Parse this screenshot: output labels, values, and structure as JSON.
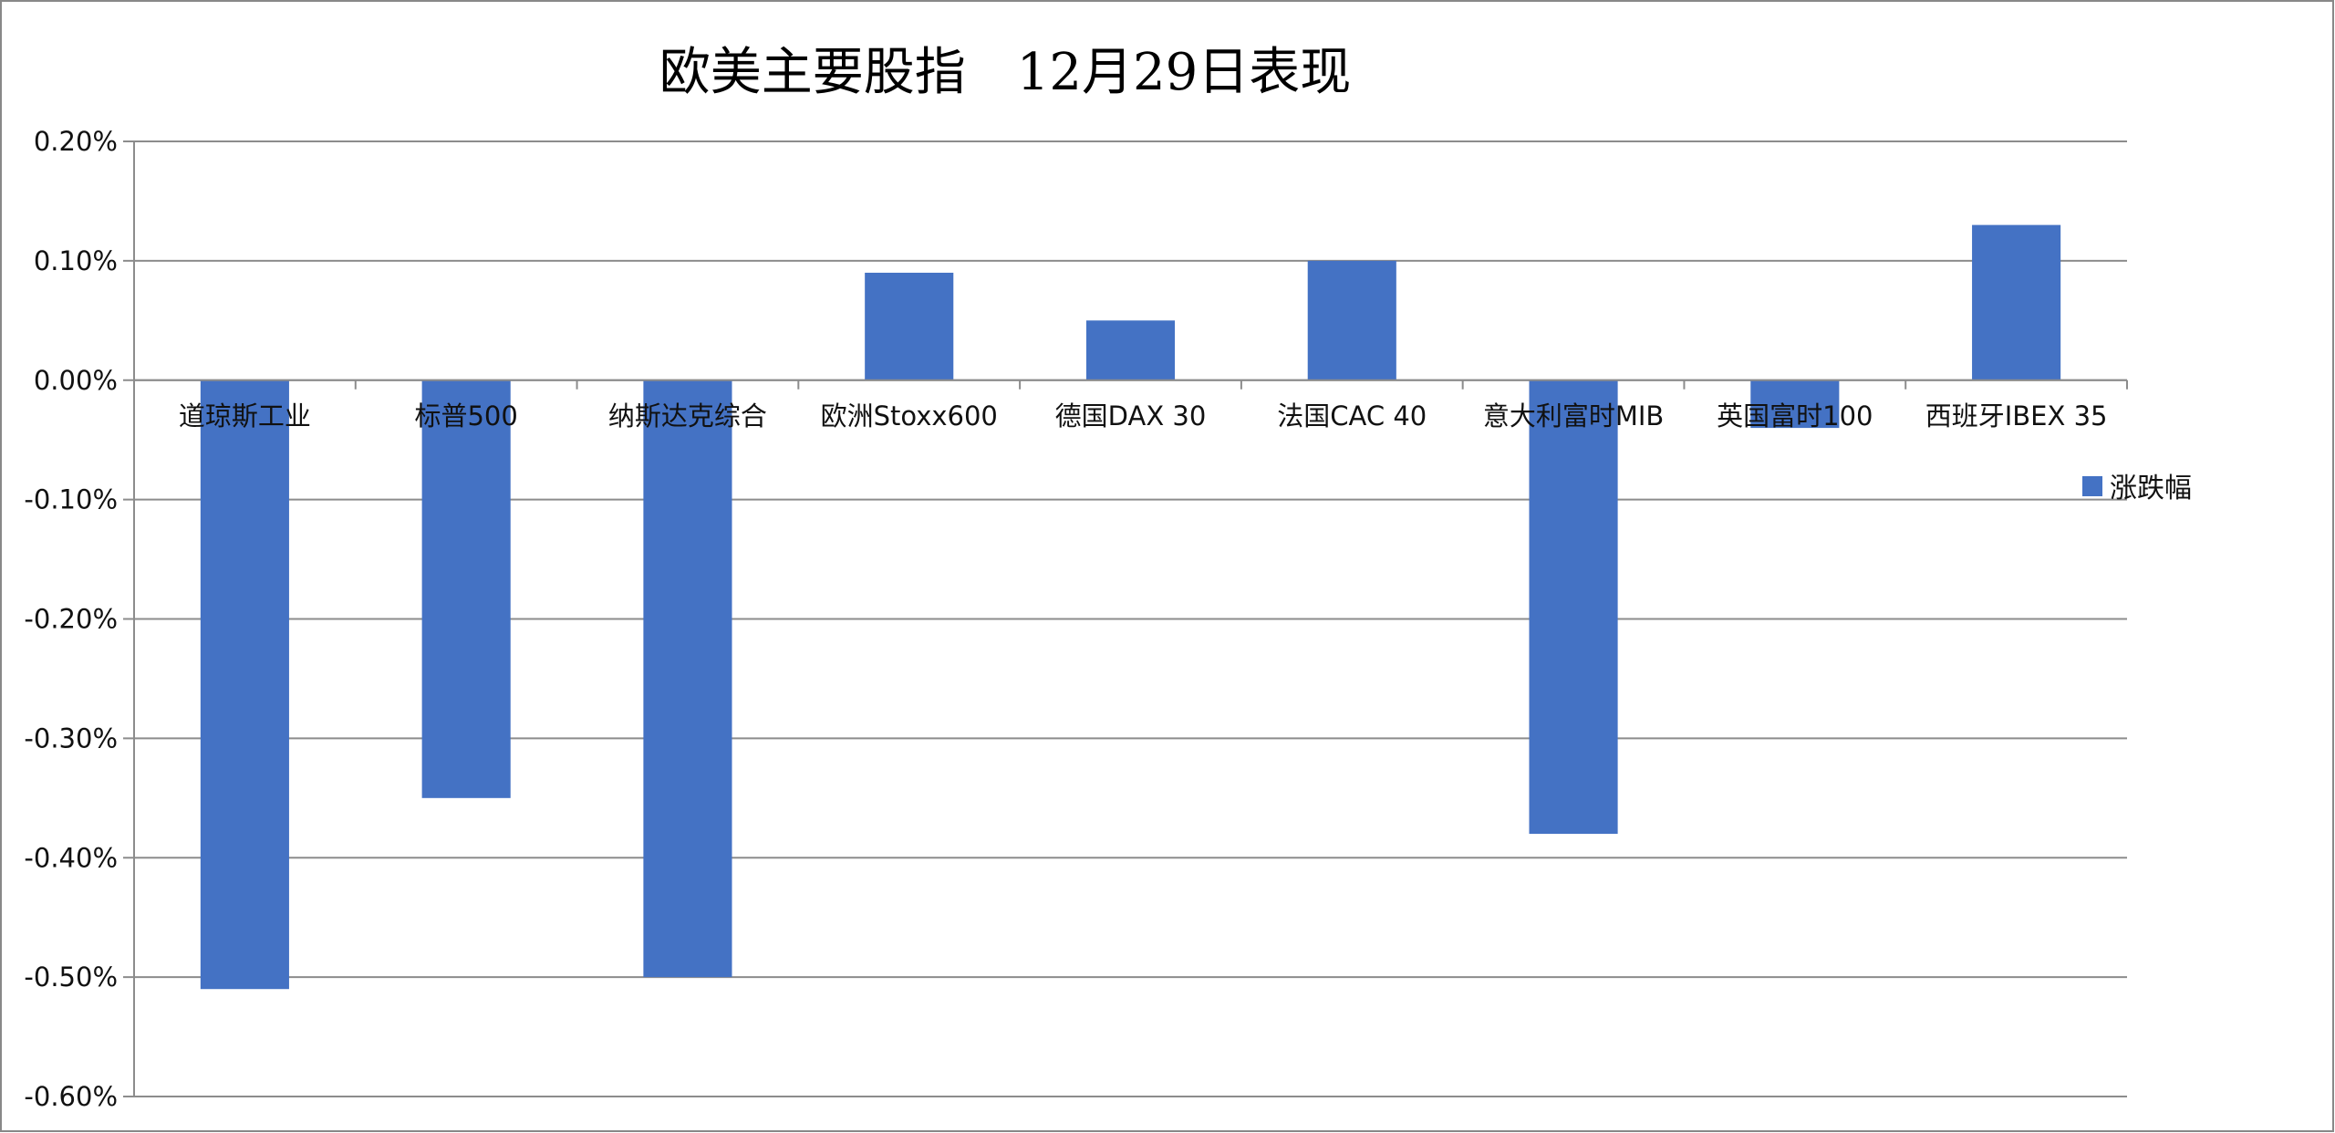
{
  "chart_data": {
    "type": "bar",
    "title": "欧美主要股指　12月29日表现",
    "categories": [
      "道琼斯工业",
      "标普500",
      "纳斯达克综合",
      "欧洲Stoxx600",
      "德国DAX 30",
      "法国CAC 40",
      "意大利富时MIB",
      "英国富时100",
      "西班牙IBEX 35"
    ],
    "series": [
      {
        "name": "涨跌幅",
        "values": [
          -0.51,
          -0.35,
          -0.5,
          0.09,
          0.05,
          0.1,
          -0.38,
          -0.04,
          0.13
        ],
        "color": "#4472C4"
      }
    ],
    "unit": "%",
    "ylim": [
      -0.6,
      0.2
    ],
    "yticks": [
      "0.20%",
      "0.10%",
      "0.00%",
      "-0.10%",
      "-0.20%",
      "-0.30%",
      "-0.40%",
      "-0.50%",
      "-0.60%"
    ],
    "grid": true,
    "legend_position": "right",
    "xlabel": "",
    "ylabel": ""
  }
}
